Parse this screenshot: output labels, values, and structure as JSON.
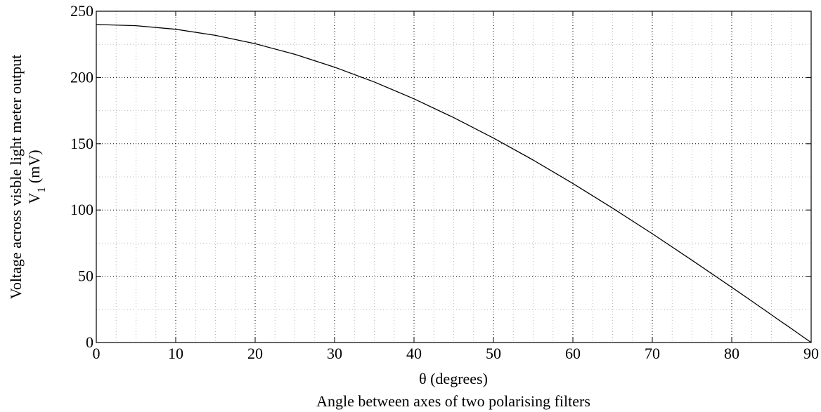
{
  "chart_data": {
    "type": "line",
    "title": "",
    "xlabel": "θ (degrees)",
    "xlabel_sub": "Angle between axes of two polarising filters",
    "ylabel_line1": "Voltage across visble light meter output",
    "ylabel_line2_main": "V",
    "ylabel_line2_sub": "1",
    "ylabel_line2_unit": "(mV)",
    "xlim": [
      0,
      90
    ],
    "ylim": [
      0,
      250
    ],
    "xticks": [
      0,
      10,
      20,
      30,
      40,
      50,
      60,
      70,
      80,
      90
    ],
    "yticks": [
      0,
      50,
      100,
      150,
      200,
      250
    ],
    "xtick_labels": [
      "0",
      "10",
      "20",
      "30",
      "40",
      "50",
      "60",
      "70",
      "80",
      "90"
    ],
    "ytick_labels": [
      "0",
      "50",
      "100",
      "150",
      "200",
      "250"
    ],
    "grid": true,
    "minor_grid": true,
    "line_color": "#000000",
    "series": [
      {
        "x": [
          0,
          5,
          10,
          15,
          20,
          25,
          30,
          35,
          40,
          45,
          50,
          55,
          60,
          65,
          70,
          75,
          80,
          82,
          84,
          85,
          86,
          87,
          88,
          89,
          89.5,
          90
        ],
        "values": [
          240,
          239.1,
          236.4,
          231.8,
          225.5,
          217.5,
          207.8,
          196.6,
          183.9,
          169.7,
          154.3,
          137.7,
          120.0,
          101.4,
          82.1,
          62.1,
          41.7,
          33.4,
          25.1,
          20.9,
          16.7,
          12.6,
          8.4,
          4.2,
          2.1,
          0
        ]
      }
    ]
  }
}
